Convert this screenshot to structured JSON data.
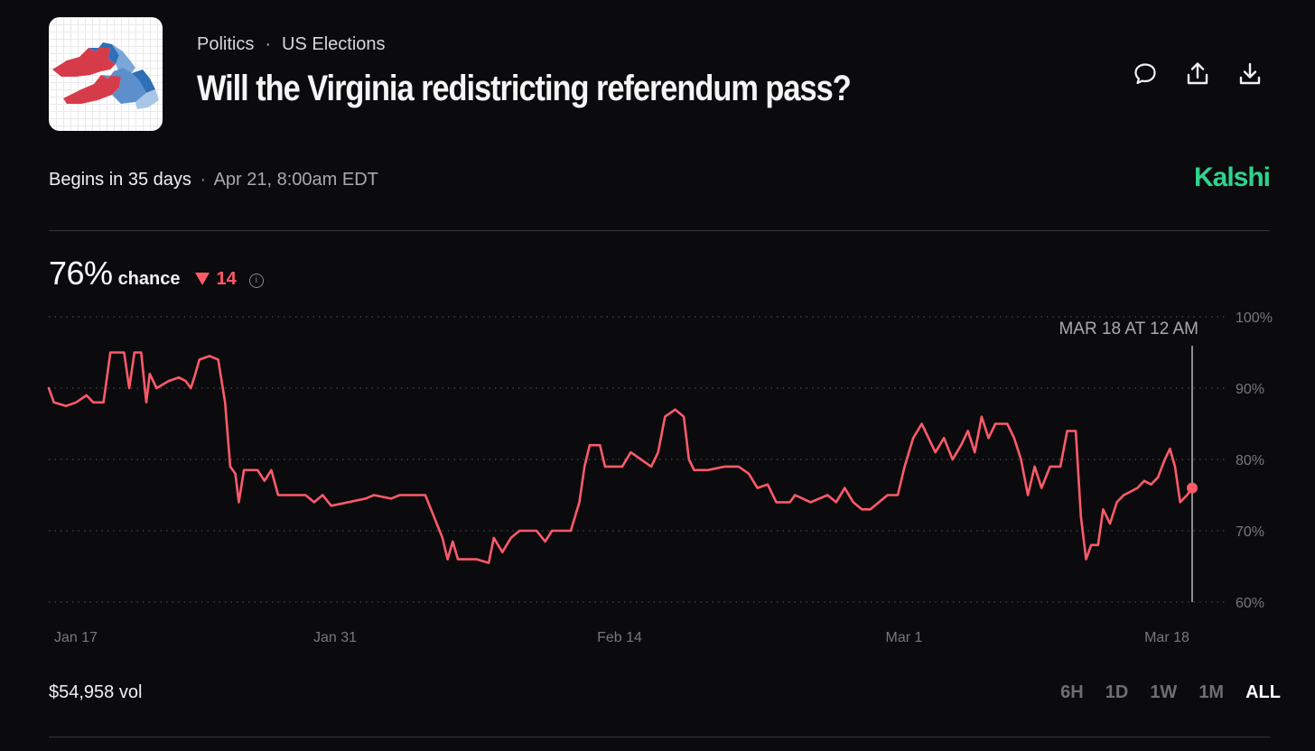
{
  "header": {
    "breadcrumbs": [
      "Politics",
      "US Elections"
    ],
    "breadcrumb_separator": "·",
    "title": "Will the Virginia redistricting referendum pass?",
    "actions": [
      {
        "name": "comment-icon",
        "label": "Comment"
      },
      {
        "name": "share-icon",
        "label": "Share"
      },
      {
        "name": "download-icon",
        "label": "Download"
      }
    ]
  },
  "meta": {
    "begins": "Begins in 35 days",
    "separator": "·",
    "date": "Apr 21, 8:00am EDT",
    "brand": "Kalshi"
  },
  "summary": {
    "chance_value": "76%",
    "chance_label": "chance",
    "delta": "14",
    "delta_direction": "down"
  },
  "chart_data": {
    "type": "line",
    "title": "",
    "xlabel": "",
    "ylabel": "",
    "x_tick_labels": [
      "Jan 17",
      "Jan 31",
      "Feb 14",
      "Mar 1",
      "Mar 18"
    ],
    "y_tick_labels": [
      "100%",
      "90%",
      "80%",
      "70%",
      "60%"
    ],
    "ylim": [
      60,
      100
    ],
    "grid": true,
    "hover_label": "MAR 18 AT 12 AM",
    "line_color": "#ff5a6a",
    "series": [
      {
        "values": [
          [
            0,
            90
          ],
          [
            0.3,
            88
          ],
          [
            1.0,
            87.5
          ],
          [
            1.6,
            88
          ],
          [
            2.2,
            89
          ],
          [
            2.6,
            88
          ],
          [
            3.2,
            88
          ],
          [
            3.6,
            95
          ],
          [
            4.4,
            95
          ],
          [
            4.7,
            90
          ],
          [
            5.0,
            95
          ],
          [
            5.4,
            95
          ],
          [
            5.7,
            88
          ],
          [
            5.9,
            92
          ],
          [
            6.3,
            90
          ],
          [
            7.0,
            91
          ],
          [
            7.6,
            91.5
          ],
          [
            8.0,
            91
          ],
          [
            8.3,
            90
          ],
          [
            8.5,
            91.5
          ],
          [
            8.8,
            94
          ],
          [
            9.4,
            94.5
          ],
          [
            9.9,
            94
          ],
          [
            10.3,
            88
          ],
          [
            10.6,
            79
          ],
          [
            10.9,
            78
          ],
          [
            11.1,
            74
          ],
          [
            11.4,
            78.5
          ],
          [
            12.2,
            78.5
          ],
          [
            12.6,
            77
          ],
          [
            13.0,
            78.5
          ],
          [
            13.4,
            75
          ],
          [
            15.0,
            75
          ],
          [
            15.5,
            74
          ],
          [
            16.0,
            75
          ],
          [
            16.5,
            73.5
          ],
          [
            17.5,
            74
          ],
          [
            18.5,
            74.5
          ],
          [
            19.0,
            75
          ],
          [
            20.0,
            74.5
          ],
          [
            20.5,
            75
          ],
          [
            22.0,
            75
          ],
          [
            22.5,
            72
          ],
          [
            23.0,
            69
          ],
          [
            23.3,
            66
          ],
          [
            23.6,
            68.5
          ],
          [
            23.9,
            66
          ],
          [
            25.0,
            66
          ],
          [
            25.7,
            65.5
          ],
          [
            26.0,
            69
          ],
          [
            26.5,
            67
          ],
          [
            27.0,
            69
          ],
          [
            27.5,
            70
          ],
          [
            28.5,
            70
          ],
          [
            29.0,
            68.5
          ],
          [
            29.4,
            70
          ],
          [
            30.5,
            70
          ],
          [
            31.0,
            74
          ],
          [
            31.3,
            79
          ],
          [
            31.6,
            82
          ],
          [
            32.2,
            82
          ],
          [
            32.5,
            79
          ],
          [
            33.5,
            79
          ],
          [
            34.0,
            81
          ],
          [
            34.6,
            80
          ],
          [
            35.2,
            79
          ],
          [
            35.6,
            81
          ],
          [
            36.0,
            86
          ],
          [
            36.6,
            87
          ],
          [
            37.1,
            86
          ],
          [
            37.4,
            80
          ],
          [
            37.7,
            78.5
          ],
          [
            38.5,
            78.5
          ],
          [
            39.5,
            79
          ],
          [
            40.3,
            79
          ],
          [
            40.9,
            78
          ],
          [
            41.4,
            76
          ],
          [
            42.0,
            76.5
          ],
          [
            42.5,
            74
          ],
          [
            43.3,
            74
          ],
          [
            43.6,
            75
          ],
          [
            44.5,
            74
          ],
          [
            45.5,
            75
          ],
          [
            46.0,
            74
          ],
          [
            46.5,
            76
          ],
          [
            47.0,
            74
          ],
          [
            47.5,
            73
          ],
          [
            48.0,
            73
          ],
          [
            48.5,
            74
          ],
          [
            49.0,
            75
          ],
          [
            49.6,
            75
          ],
          [
            50.0,
            79
          ],
          [
            50.5,
            83
          ],
          [
            51.0,
            85
          ],
          [
            51.4,
            83
          ],
          [
            51.8,
            81
          ],
          [
            52.3,
            83
          ],
          [
            52.8,
            80
          ],
          [
            53.3,
            82
          ],
          [
            53.7,
            84
          ],
          [
            54.1,
            81
          ],
          [
            54.5,
            86
          ],
          [
            54.9,
            83
          ],
          [
            55.3,
            85
          ],
          [
            56.0,
            85
          ],
          [
            56.4,
            83
          ],
          [
            56.8,
            80
          ],
          [
            57.2,
            75
          ],
          [
            57.6,
            79
          ],
          [
            58.0,
            76
          ],
          [
            58.5,
            79
          ],
          [
            59.1,
            79
          ],
          [
            59.5,
            84
          ],
          [
            60.0,
            84
          ],
          [
            60.3,
            72
          ],
          [
            60.6,
            66
          ],
          [
            60.9,
            68
          ],
          [
            61.3,
            68
          ],
          [
            61.6,
            73
          ],
          [
            62.0,
            71
          ],
          [
            62.4,
            74
          ],
          [
            62.8,
            75
          ],
          [
            63.2,
            75.5
          ],
          [
            63.6,
            76
          ],
          [
            64.0,
            77
          ],
          [
            64.4,
            76.5
          ],
          [
            64.8,
            77.5
          ],
          [
            65.2,
            80
          ],
          [
            65.5,
            81.5
          ],
          [
            65.8,
            79
          ],
          [
            66.1,
            74
          ],
          [
            66.5,
            75
          ],
          [
            66.8,
            76
          ]
        ]
      }
    ],
    "current_value": 76
  },
  "footer": {
    "volume": "$54,958 vol",
    "ranges": [
      "6H",
      "1D",
      "1W",
      "1M",
      "ALL"
    ],
    "active_range": "ALL"
  }
}
